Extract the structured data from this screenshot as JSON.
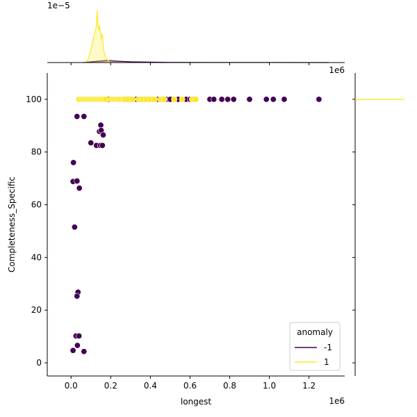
{
  "chart_data": {
    "type": "scatter",
    "xlabel": "longest",
    "ylabel": "Completeness_Specific",
    "x_offset_label": "1e6",
    "marg_x_offset_label": "1e6",
    "marg_y_offset_label": "1e−5",
    "xlim": [
      -120000,
      1380000
    ],
    "ylim": [
      -5,
      110
    ],
    "x_ticks": [
      0,
      200000,
      400000,
      600000,
      800000,
      1000000,
      1200000
    ],
    "x_tick_labels": [
      "0.0",
      "0.2",
      "0.4",
      "0.6",
      "0.8",
      "1.0",
      "1.2"
    ],
    "y_ticks": [
      0,
      20,
      40,
      60,
      80,
      100
    ],
    "y_tick_labels": [
      "0",
      "20",
      "40",
      "60",
      "80",
      "100"
    ],
    "grid": false,
    "legend": {
      "title": "anomaly",
      "placement": "lower-right",
      "entries": [
        {
          "label": "-1",
          "color": "#440154"
        },
        {
          "label": "1",
          "color": "#fde725"
        }
      ]
    },
    "series": [
      {
        "name": "-1",
        "color": "#440154",
        "points": [
          [
            190000,
            100
          ],
          [
            210000,
            100
          ],
          [
            250000,
            100
          ],
          [
            280000,
            100
          ],
          [
            300000,
            100
          ],
          [
            330000,
            100
          ],
          [
            350000,
            100
          ],
          [
            370000,
            100
          ],
          [
            390000,
            100
          ],
          [
            410000,
            100
          ],
          [
            440000,
            100
          ],
          [
            460000,
            100
          ],
          [
            480000,
            100
          ],
          [
            500000,
            100
          ],
          [
            540000,
            100
          ],
          [
            580000,
            100
          ],
          [
            600000,
            100
          ],
          [
            620000,
            100
          ],
          [
            700000,
            100
          ],
          [
            720000,
            100
          ],
          [
            760000,
            100
          ],
          [
            790000,
            100
          ],
          [
            820000,
            100
          ],
          [
            900000,
            100
          ],
          [
            985000,
            100
          ],
          [
            1020000,
            100
          ],
          [
            1075000,
            100
          ],
          [
            1250000,
            100
          ],
          [
            30000,
            93.5
          ],
          [
            65000,
            93.5
          ],
          [
            150000,
            90.2
          ],
          [
            143000,
            87.8
          ],
          [
            152000,
            88.2
          ],
          [
            162000,
            86.5
          ],
          [
            100000,
            83.5
          ],
          [
            128000,
            82.5
          ],
          [
            148000,
            82.5
          ],
          [
            158000,
            82.5
          ],
          [
            12000,
            76
          ],
          [
            10000,
            68.8
          ],
          [
            30000,
            69
          ],
          [
            42000,
            66.3
          ],
          [
            18000,
            51.5
          ],
          [
            35000,
            26.8
          ],
          [
            30000,
            25.3
          ],
          [
            25000,
            10.2
          ],
          [
            40000,
            10.2
          ],
          [
            32000,
            6.6
          ],
          [
            10000,
            4.7
          ],
          [
            65000,
            4.3
          ]
        ]
      },
      {
        "name": "1",
        "color": "#fde725",
        "points": [
          [
            40000,
            100
          ],
          [
            55000,
            100
          ],
          [
            65000,
            100
          ],
          [
            75000,
            100
          ],
          [
            85000,
            100
          ],
          [
            95000,
            100
          ],
          [
            105000,
            100
          ],
          [
            115000,
            100
          ],
          [
            125000,
            100
          ],
          [
            135000,
            100
          ],
          [
            145000,
            100
          ],
          [
            155000,
            100
          ],
          [
            165000,
            100
          ],
          [
            175000,
            100
          ],
          [
            200000,
            100
          ],
          [
            215000,
            100
          ],
          [
            225000,
            100
          ],
          [
            235000,
            100
          ],
          [
            245000,
            100
          ],
          [
            260000,
            100
          ],
          [
            270000,
            100
          ],
          [
            290000,
            100
          ],
          [
            310000,
            100
          ],
          [
            340000,
            100
          ],
          [
            360000,
            100
          ],
          [
            380000,
            100
          ],
          [
            400000,
            100
          ],
          [
            420000,
            100
          ],
          [
            450000,
            100
          ],
          [
            470000,
            100
          ],
          [
            520000,
            100
          ],
          [
            560000,
            100
          ],
          [
            610000,
            100
          ],
          [
            630000,
            100
          ]
        ]
      }
    ],
    "marginal_x_kde": [
      {
        "name": "-1",
        "color": "#440154",
        "points": [
          [
            60000,
            0
          ],
          [
            120000,
            0.02
          ],
          [
            180000,
            0.04
          ],
          [
            240000,
            0.025
          ],
          [
            300000,
            0.015
          ],
          [
            400000,
            0.008
          ],
          [
            500000,
            0.004
          ],
          [
            700000,
            0.002
          ],
          [
            1000000,
            0.001
          ],
          [
            1300000,
            0
          ]
        ]
      },
      {
        "name": "1",
        "color": "#fde725",
        "points": [
          [
            70000,
            0
          ],
          [
            85000,
            0.05
          ],
          [
            95000,
            0.18
          ],
          [
            105000,
            0.32
          ],
          [
            112000,
            0.45
          ],
          [
            118000,
            0.55
          ],
          [
            124000,
            0.62
          ],
          [
            128000,
            0.75
          ],
          [
            132000,
            1.0
          ],
          [
            136000,
            0.7
          ],
          [
            140000,
            0.62
          ],
          [
            144000,
            0.72
          ],
          [
            148000,
            0.58
          ],
          [
            152000,
            0.45
          ],
          [
            158000,
            0.55
          ],
          [
            164000,
            0.25
          ],
          [
            172000,
            0.12
          ],
          [
            185000,
            0.04
          ],
          [
            200000,
            0.01
          ],
          [
            220000,
            0
          ]
        ]
      }
    ],
    "marginal_y_kde": [
      {
        "name": "1",
        "color": "#fde725",
        "value": 100
      }
    ]
  }
}
